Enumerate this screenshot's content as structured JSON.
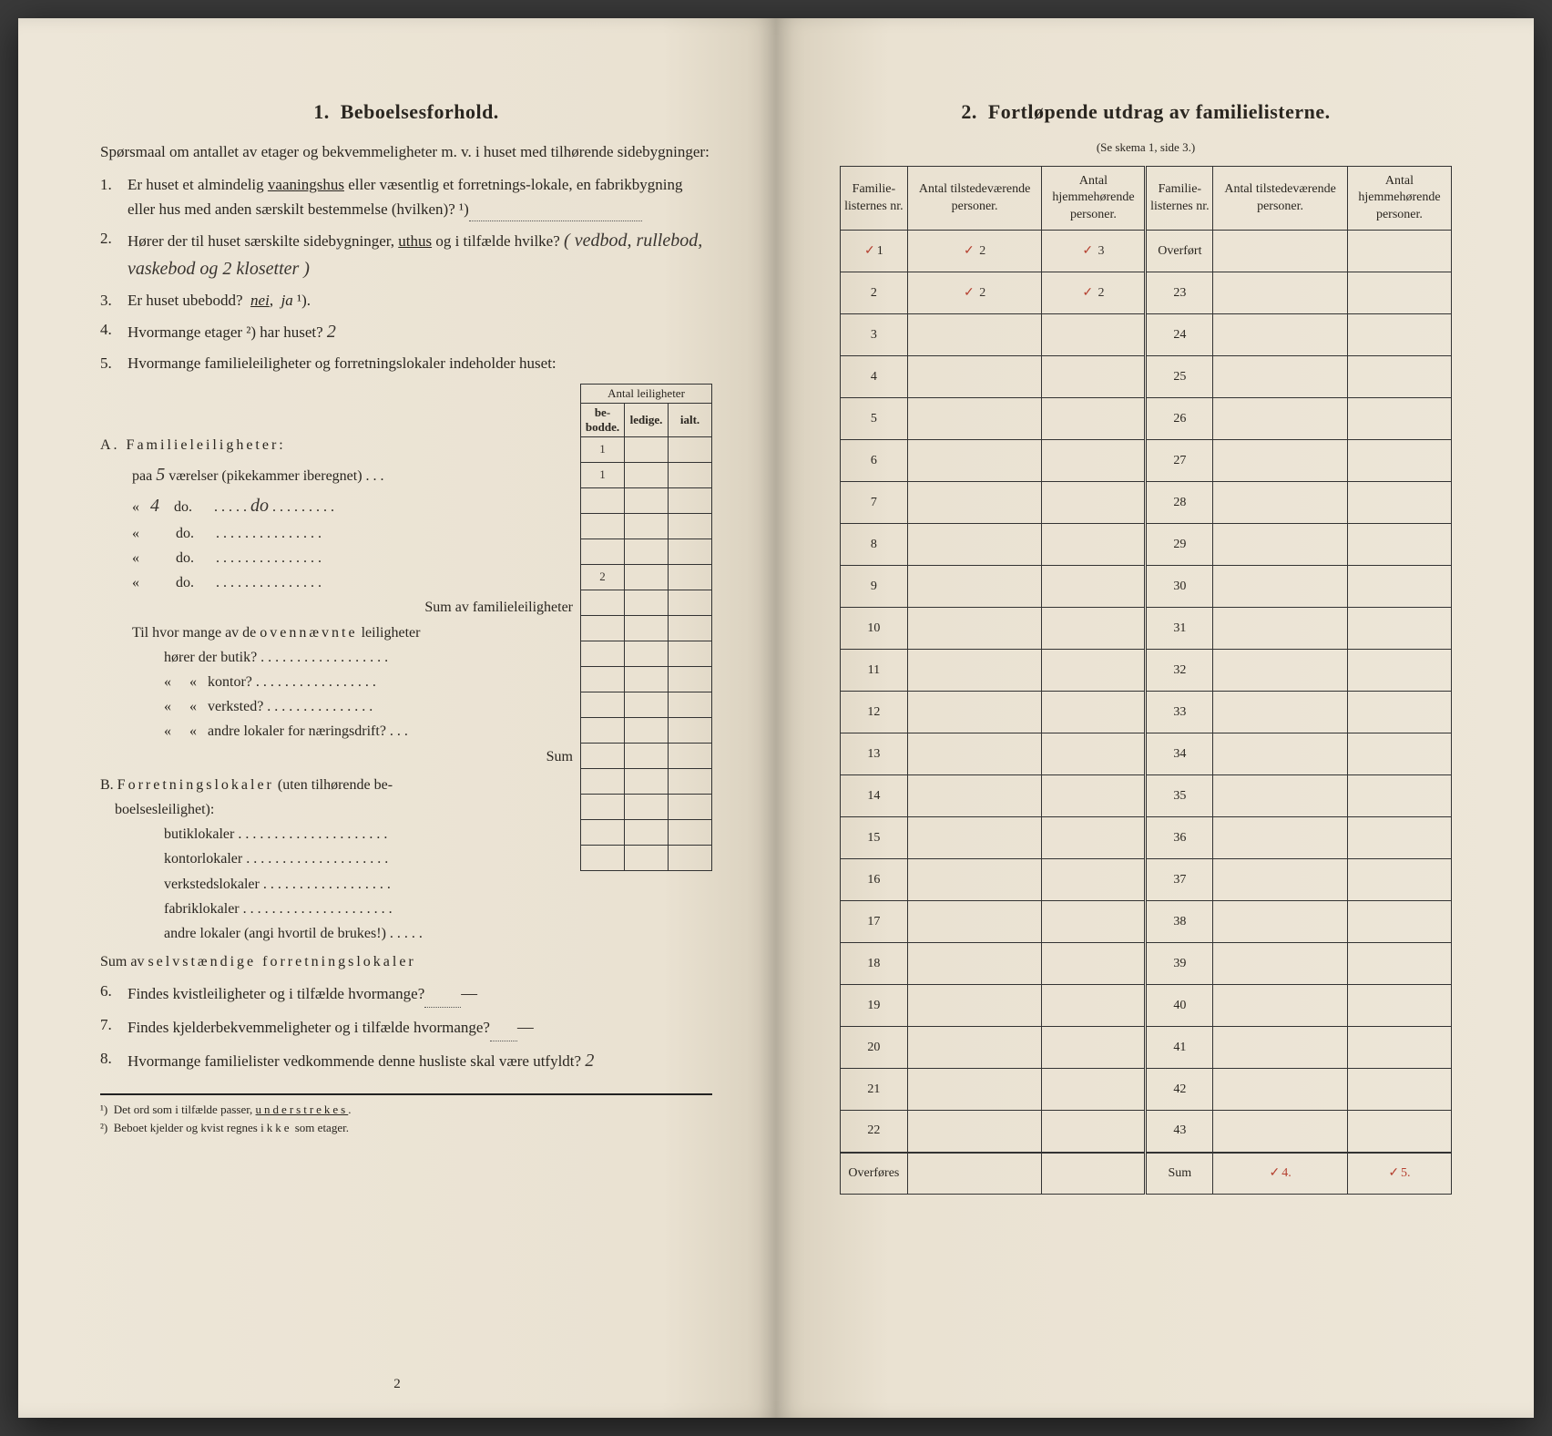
{
  "left": {
    "heading_num": "1.",
    "heading": "Beboelsesforhold.",
    "intro": "Spørsmaal om antallet av etager og bekvemmeligheter m. v. i huset med tilhørende sidebygninger:",
    "q1_num": "1.",
    "q1": "Er huset et almindelig vaaningshus eller væsentlig et forretningslokale, en fabrikbygning eller hus med anden særskilt bestemmelse (hvilken)? ¹)",
    "q2_num": "2.",
    "q2_a": "Hører der til huset særskilte sidebygninger, uthus og i tilfælde hvilke?",
    "q2_hand": "( vedbod, rullebod, vaskebod og 2 klosetter )",
    "q3_num": "3.",
    "q3": "Er huset ubebodd?  nei,  ja ¹).",
    "q4_num": "4.",
    "q4": "Hvormange etager ²) har huset?",
    "q4_hand": "2",
    "q5_num": "5.",
    "q5": "Hvormange familieleiligheter og forretningslokaler indeholder huset:",
    "apt_header": "Antal leiligheter",
    "apt_sub1": "be-bodde.",
    "apt_sub2": "ledige.",
    "apt_sub3": "ialt.",
    "sectA": "A. Familieleiligheter:",
    "rowA1_a": "paa",
    "rowA1_hand": "5",
    "rowA1_b": "værelser (pikekammer iberegnet) . . .",
    "rowA1_val": "1",
    "rowA2_a": "«",
    "rowA2_hand": "4",
    "rowA2_b": "do.",
    "rowA2_val": "1",
    "rowA3": "«            do.",
    "rowA4": "«            do.",
    "rowA5": "«            do.",
    "sumA": "Sum av familieleiligheter",
    "sumA_val": "2",
    "sub_intro": "Til hvor mange av de ovennævnte leiligheter",
    "sub1": "hører der butik?",
    "sub2": "«     «   kontor?",
    "sub3": "«     «   verksted?",
    "sub4": "«     «   andre lokaler for næringsdrift? . . .",
    "sub_sum": "Sum",
    "sectB": "B. Forretningslokaler (uten tilhørende beboelsesleilighet):",
    "rowB1": "butiklokaler",
    "rowB2": "kontorlokaler",
    "rowB3": "verkstedslokaler",
    "rowB4": "fabriklokaler",
    "rowB5": "andre lokaler (angi hvortil de brukes!)",
    "sumB": "Sum av selvstændige forretningslokaler",
    "q6_num": "6.",
    "q6": "Findes kvistleiligheter og i tilfælde hvormange?",
    "q7_num": "7.",
    "q7": "Findes kjelderbekvemmeligheter og i tilfælde hvormange?",
    "q8_num": "8.",
    "q8": "Hvormange familielister vedkommende denne husliste skal være utfyldt?",
    "q8_hand": "2",
    "foot1": "¹)  Det ord som i tilfælde passer, understrekes.",
    "foot2": "²)  Beboet kjelder og kvist regnes ikke som etager.",
    "pagenum": "2"
  },
  "right": {
    "heading_num": "2.",
    "heading": "Fortløpende utdrag av familielisterne.",
    "subtitle": "(Se skema 1, side 3.)",
    "col1": "Familie-listernes nr.",
    "col2": "Antal tilstedeværende personer.",
    "col3": "Antal hjemmehørende personer.",
    "overfort": "Overført",
    "overfores": "Overføres",
    "sum_label": "Sum",
    "row1_nr": "1",
    "row1_a": "2",
    "row1_b": "3",
    "row2_nr": "2",
    "row2_a": "2",
    "row2_b": "2",
    "sum_a": "4.",
    "sum_b": "5.",
    "left_nrs": [
      "3",
      "4",
      "5",
      "6",
      "7",
      "8",
      "9",
      "10",
      "11",
      "12",
      "13",
      "14",
      "15",
      "16",
      "17",
      "18",
      "19",
      "20",
      "21",
      "22"
    ],
    "right_nrs": [
      "23",
      "24",
      "25",
      "26",
      "27",
      "28",
      "29",
      "30",
      "31",
      "32",
      "33",
      "34",
      "35",
      "36",
      "37",
      "38",
      "39",
      "40",
      "41",
      "42",
      "43"
    ]
  }
}
